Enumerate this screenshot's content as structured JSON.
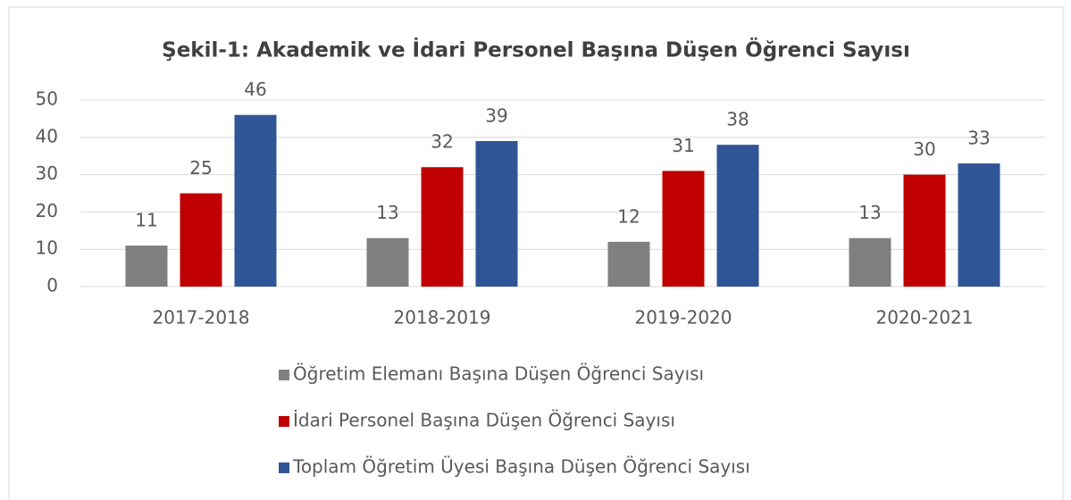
{
  "chart_data": {
    "type": "bar",
    "title": "Şekil-1: Akademik ve İdari Personel Başına Düşen Öğrenci Sayısı",
    "categories": [
      "2017-2018",
      "2018-2019",
      "2019-2020",
      "2020-2021"
    ],
    "series": [
      {
        "name": "Öğretim Elemanı Başına Düşen Öğrenci Sayısı",
        "color": "#808080",
        "values": [
          11,
          13,
          12,
          13
        ]
      },
      {
        "name": "İdari Personel Başına Düşen Öğrenci Sayısı",
        "color": "#c00000",
        "values": [
          25,
          32,
          31,
          30
        ]
      },
      {
        "name": "Toplam Öğretim Üyesi Başına Düşen Öğrenci Sayısı",
        "color": "#2f5597",
        "values": [
          46,
          39,
          38,
          33
        ]
      }
    ],
    "ylim": [
      0,
      50
    ],
    "yticks": [
      0,
      10,
      20,
      30,
      40,
      50
    ],
    "grid": true,
    "legend": "bottom"
  }
}
